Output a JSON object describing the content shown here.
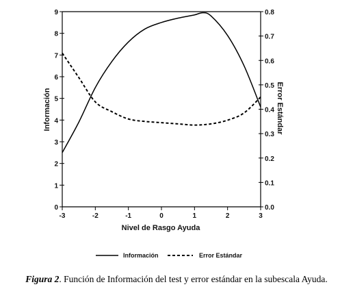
{
  "chart_data": {
    "type": "line",
    "xlabel": "Nivel de Rasgo Ayuda",
    "ylabel_left": "Información",
    "ylabel_right": "Error Estándar",
    "xlim": [
      -3,
      3
    ],
    "ylim_left": [
      0,
      9
    ],
    "ylim_right": [
      0.0,
      0.8
    ],
    "x_ticks": [
      "-3",
      "-2",
      "-1",
      "0",
      "1",
      "2",
      "3"
    ],
    "y_left_ticks": [
      "0",
      "1",
      "2",
      "3",
      "4",
      "5",
      "6",
      "7",
      "8",
      "9"
    ],
    "y_right_ticks": [
      "0.0",
      "0.1",
      "0.2",
      "0.3",
      "0.4",
      "0.5",
      "0.6",
      "0.7",
      "0.8"
    ],
    "legend_position": "bottom",
    "series": [
      {
        "name": "Información",
        "axis": "left",
        "style": "solid",
        "color": "#000000",
        "x": [
          -3,
          -2.5,
          -2,
          -1.5,
          -1,
          -0.5,
          0,
          0.5,
          1,
          1.25,
          1.5,
          2,
          2.5,
          3
        ],
        "y": [
          2.5,
          3.9,
          5.5,
          6.7,
          7.6,
          8.2,
          8.5,
          8.7,
          8.85,
          8.95,
          8.8,
          7.9,
          6.5,
          4.6
        ]
      },
      {
        "name": "Error Estándar",
        "axis": "right",
        "style": "dashed",
        "color": "#000000",
        "x": [
          -3,
          -2.5,
          -2,
          -1.5,
          -1,
          -0.5,
          0,
          0.5,
          1,
          1.5,
          2,
          2.5,
          3
        ],
        "y": [
          0.63,
          0.53,
          0.43,
          0.39,
          0.36,
          0.35,
          0.345,
          0.34,
          0.335,
          0.34,
          0.355,
          0.385,
          0.45
        ]
      }
    ]
  },
  "caption": {
    "figure_label": "Figura 2",
    "text": ". Función de Información del test y error estándar en la subescala Ayuda."
  }
}
